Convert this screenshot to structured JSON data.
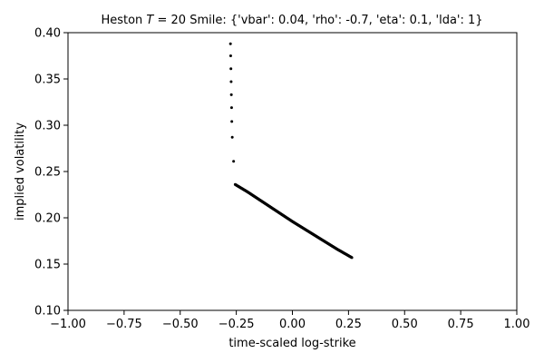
{
  "chart_data": {
    "type": "scatter",
    "title": "Heston T = 20 Smile: {'vbar': 0.04, 'rho': -0.7, 'eta': 0.1, 'lda': 1}",
    "title_parts": {
      "prefix": "Heston ",
      "var": "T",
      "suffix": " = 20 Smile: {'vbar': 0.04, 'rho': -0.7, 'eta': 0.1, 'lda': 1}"
    },
    "xlabel": "time-scaled log-strike",
    "ylabel": "implied volatility",
    "xlim": [
      -1.0,
      1.0
    ],
    "ylim": [
      0.1,
      0.4
    ],
    "xticks": [
      "−1.00",
      "−0.75",
      "−0.50",
      "−0.25",
      "0.00",
      "0.25",
      "0.50",
      "0.75",
      "1.00"
    ],
    "yticks": [
      "0.10",
      "0.15",
      "0.20",
      "0.25",
      "0.30",
      "0.35",
      "0.40"
    ],
    "grid": false,
    "marker_color": "#000000",
    "sparse_points": [
      {
        "x": -0.276,
        "y": 0.388
      },
      {
        "x": -0.275,
        "y": 0.375
      },
      {
        "x": -0.274,
        "y": 0.361
      },
      {
        "x": -0.273,
        "y": 0.347
      },
      {
        "x": -0.272,
        "y": 0.333
      },
      {
        "x": -0.271,
        "y": 0.319
      },
      {
        "x": -0.27,
        "y": 0.304
      },
      {
        "x": -0.268,
        "y": 0.287
      },
      {
        "x": -0.262,
        "y": 0.261
      }
    ],
    "dense_curve": [
      {
        "x": -0.255,
        "y": 0.236
      },
      {
        "x": -0.2,
        "y": 0.228
      },
      {
        "x": -0.1,
        "y": 0.212
      },
      {
        "x": 0.0,
        "y": 0.196
      },
      {
        "x": 0.1,
        "y": 0.181
      },
      {
        "x": 0.2,
        "y": 0.166
      },
      {
        "x": 0.265,
        "y": 0.157
      }
    ],
    "dense_point_count": 400
  }
}
